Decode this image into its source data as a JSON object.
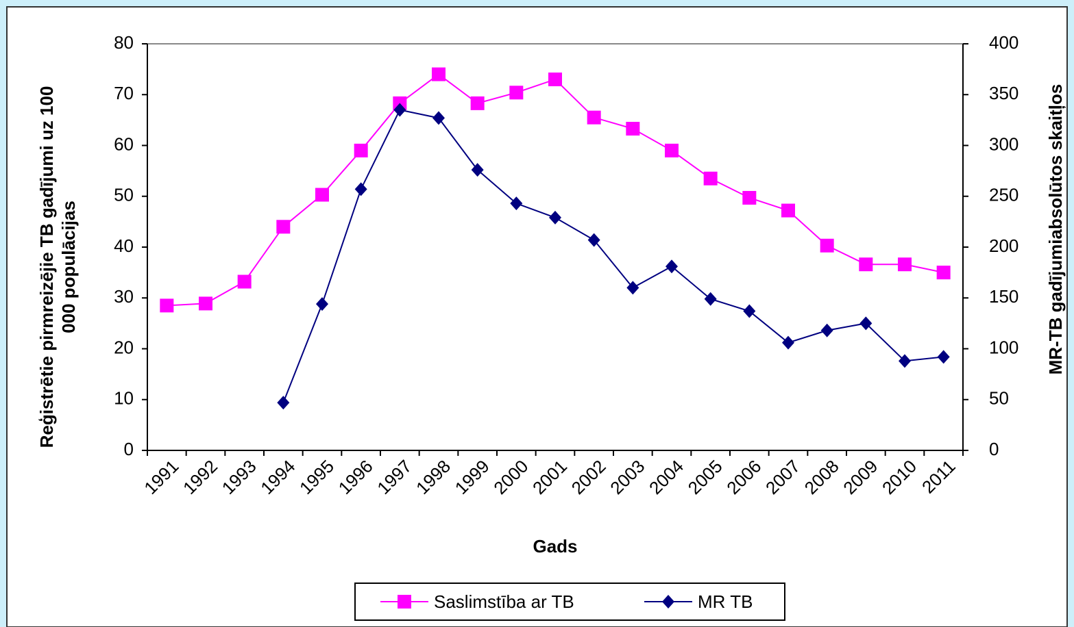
{
  "chart_data": {
    "type": "line",
    "xlabel": "Gads",
    "ylabel": [
      "Reģistrētie pirmreizējie TB gadījumi  uz  100",
      "000 populācijas"
    ],
    "y2label": "MR-TB gadījumiabsolūtos skaitļos",
    "categories": [
      "1991",
      "1992",
      "1993",
      "1994",
      "1995",
      "1996",
      "1997",
      "1998",
      "1999",
      "2000",
      "2001",
      "2002",
      "2003",
      "2004",
      "2005",
      "2006",
      "2007",
      "2008",
      "2009",
      "2010",
      "2011"
    ],
    "series": [
      {
        "name": "Saslimstība ar TB",
        "color": "#ff00ff",
        "marker": "square",
        "values": [
          28.5,
          28.9,
          33.2,
          44,
          50.3,
          59,
          68.3,
          74,
          68.3,
          70.4,
          73,
          65.5,
          63.3,
          59,
          53.5,
          49.7,
          47.2,
          40.3,
          36.6,
          36.6,
          35
        ]
      },
      {
        "name": "MR TB",
        "color": "#000080",
        "marker": "diamond",
        "axis": "y2",
        "values": [
          null,
          null,
          null,
          47,
          144,
          257,
          335,
          327,
          276,
          243,
          229,
          207,
          160,
          181,
          149,
          137,
          106,
          118,
          125,
          88,
          92
        ]
      }
    ],
    "ylim": [
      0,
      80
    ],
    "yticks": [
      0,
      10,
      20,
      30,
      40,
      50,
      60,
      70,
      80
    ],
    "y2lim": [
      0,
      400
    ],
    "y2ticks": [
      0,
      50,
      100,
      150,
      200,
      250,
      300,
      350,
      400
    ],
    "grid": false,
    "legend": "bottom"
  }
}
